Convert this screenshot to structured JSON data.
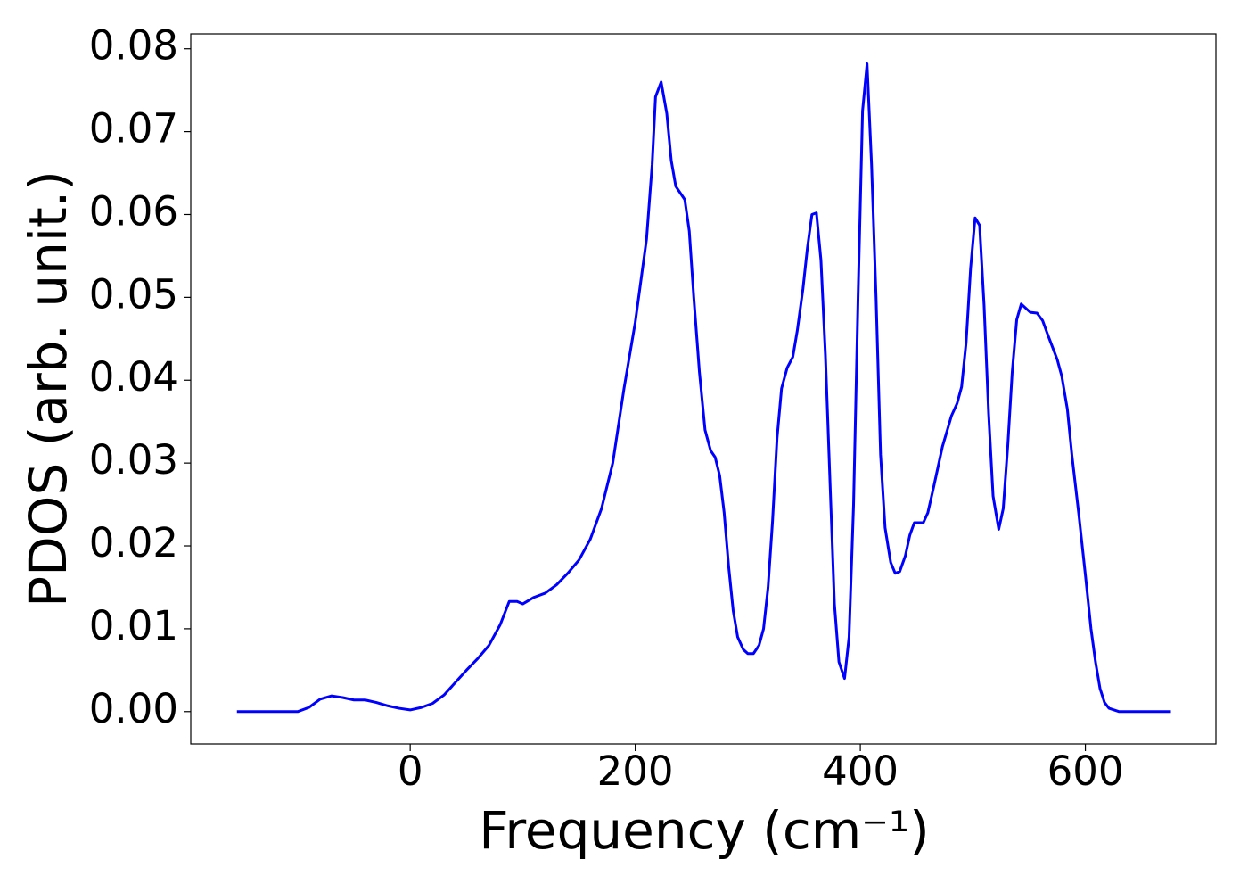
{
  "chart_data": {
    "type": "line",
    "xlabel": "Frequency (cm⁻¹)",
    "ylabel": "PDOS (arb. unit.)",
    "color": "#0000ff",
    "x": [
      -154,
      -100,
      -90,
      -80,
      -70,
      -60,
      -50,
      -40,
      -30,
      -20,
      -10,
      0,
      10,
      20,
      30,
      40,
      50,
      60,
      70,
      80,
      88,
      95,
      100,
      110,
      120,
      130,
      140,
      150,
      160,
      170,
      180,
      190,
      200,
      210,
      215,
      218,
      223,
      228,
      232,
      236,
      244,
      248,
      252,
      257,
      262,
      267,
      271,
      275,
      279,
      283,
      287,
      291,
      296,
      300,
      305,
      310,
      314,
      318,
      322,
      326,
      330,
      335,
      340,
      344,
      349,
      353,
      357,
      361,
      365,
      369,
      373,
      377,
      381,
      386,
      390,
      394,
      398,
      402,
      406,
      410,
      414,
      418,
      422,
      427,
      431,
      435,
      440,
      444,
      448,
      456,
      460,
      465,
      473,
      481,
      486,
      490,
      494,
      498,
      502,
      506,
      510,
      514,
      518,
      523,
      527,
      531,
      535,
      539,
      543,
      551,
      557,
      562,
      566,
      575,
      579,
      584,
      588,
      594,
      600,
      605,
      609,
      613,
      617,
      621,
      630,
      676
    ],
    "values": [
      0,
      0,
      0.0005,
      0.0015,
      0.0019,
      0.0017,
      0.0014,
      0.0014,
      0.0011,
      0.0007,
      0.0004,
      0.0002,
      0.0005,
      0.001,
      0.002,
      0.0035,
      0.005,
      0.0064,
      0.008,
      0.0105,
      0.0133,
      0.0133,
      0.013,
      0.0138,
      0.0143,
      0.0153,
      0.0167,
      0.0183,
      0.0208,
      0.0245,
      0.03,
      0.039,
      0.047,
      0.057,
      0.066,
      0.0742,
      0.076,
      0.0722,
      0.0665,
      0.0634,
      0.0618,
      0.058,
      0.05,
      0.041,
      0.034,
      0.0315,
      0.0307,
      0.0285,
      0.024,
      0.0175,
      0.0122,
      0.009,
      0.0075,
      0.007,
      0.007,
      0.008,
      0.01,
      0.015,
      0.023,
      0.033,
      0.039,
      0.0415,
      0.0428,
      0.046,
      0.051,
      0.056,
      0.06,
      0.0602,
      0.0545,
      0.043,
      0.028,
      0.013,
      0.006,
      0.004,
      0.009,
      0.025,
      0.05,
      0.0725,
      0.0782,
      0.066,
      0.05,
      0.031,
      0.0222,
      0.018,
      0.0167,
      0.0169,
      0.0188,
      0.0213,
      0.0228,
      0.0228,
      0.024,
      0.027,
      0.032,
      0.0357,
      0.0372,
      0.0392,
      0.0445,
      0.0535,
      0.0596,
      0.0587,
      0.049,
      0.036,
      0.026,
      0.022,
      0.0245,
      0.032,
      0.041,
      0.0473,
      0.0492,
      0.0482,
      0.0481,
      0.0472,
      0.0457,
      0.0425,
      0.0405,
      0.0365,
      0.031,
      0.024,
      0.0165,
      0.01,
      0.006,
      0.0028,
      0.0011,
      0.0004,
      0,
      0
    ],
    "xlim": [
      -195,
      716
    ],
    "ylim": [
      -0.0039,
      0.0818
    ],
    "xticks": [
      0,
      200,
      400,
      600
    ],
    "yticks": [
      {
        "value": 0,
        "label": "0.00"
      },
      {
        "value": 0.01,
        "label": "0.01"
      },
      {
        "value": 0.02,
        "label": "0.02"
      },
      {
        "value": 0.03,
        "label": "0.03"
      },
      {
        "value": 0.04,
        "label": "0.04"
      },
      {
        "value": 0.05,
        "label": "0.05"
      },
      {
        "value": 0.06,
        "label": "0.06"
      },
      {
        "value": 0.07,
        "label": "0.07"
      },
      {
        "value": 0.08,
        "label": "0.08"
      }
    ],
    "grid": false
  }
}
